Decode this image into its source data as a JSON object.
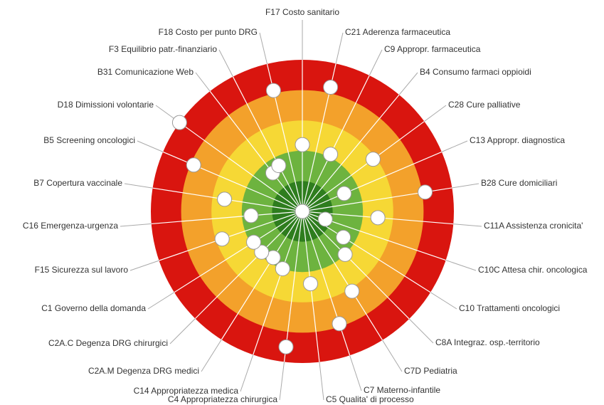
{
  "chart_data": {
    "type": "target",
    "categories": [
      "F17 Costo sanitario",
      "C21 Aderenza farmaceutica",
      "C9 Appropr. farmaceutica",
      "B4 Consumo farmaci oppioidi",
      "C28 Cure palliative",
      "C13 Appropr. diagnostica",
      "B28 Cure domiciliari",
      "C11A Assistenza cronicita'",
      "C10C Attesa chir. oncologica",
      "C10 Trattamenti oncologici",
      "C8A Integraz. osp.-territorio",
      "C7D Pediatria",
      "C7 Materno-infantile",
      "C5 Qualita' di processo",
      "C4 Appropriatezza chirurgica",
      "C14 Appropriatezza medica",
      "C2A.M Degenza DRG medici",
      "C2A.C Degenza DRG chirurgici",
      "C1 Governo della domanda",
      "F15 Sicurezza sul lavoro",
      "C16 Emergenza-urgenza",
      "B7 Copertura vaccinale",
      "B5 Screening oncologici",
      "D18 Dimissioni volontarie",
      "B31 Comunicazione Web",
      "F3 Equilibrio patr.-finanziario",
      "F18 Costo per punto DRG"
    ],
    "values": [
      2.8,
      0.8,
      2.9,
      5,
      2.1,
      3.5,
      0.9,
      2.5,
      4.2,
      3.4,
      3.0,
      1.9,
      1.1,
      2.6,
      0.5,
      3.0,
      3.2,
      3.1,
      3.1,
      2.2,
      3.3,
      2.4,
      1.1,
      0.0,
      3.4,
      3.3,
      0.9
    ],
    "rlim": [
      5,
      0
    ],
    "band_colors": [
      "#2e7d1e",
      "#6db33f",
      "#f6d835",
      "#f3a12b",
      "#d9150f"
    ],
    "marker_color": "#ffffff"
  }
}
